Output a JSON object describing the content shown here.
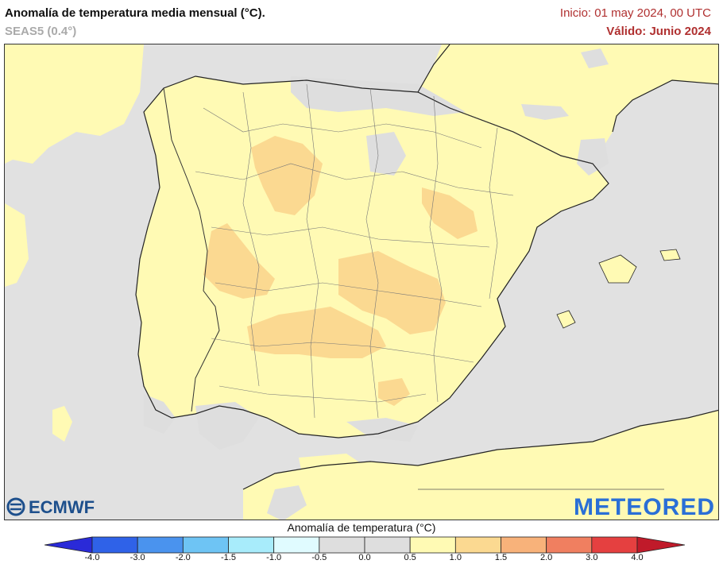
{
  "header": {
    "title": "Anomalía de temperatura media mensual (°C).",
    "subtitle": "SEAS5 (0.4°)",
    "init": "Inicio: 01 may 2024, 00 UTC",
    "valid": "Válido: Junio 2024"
  },
  "logos": {
    "left": "ECMWF",
    "right": "METEORED"
  },
  "colorbar": {
    "title": "Anomalía de temperatura (°C)",
    "ticks": [
      "-4.0",
      "-3.0",
      "-2.0",
      "-1.5",
      "-1.0",
      "-0.5",
      "0.0",
      "0.5",
      "1.0",
      "1.5",
      "2.0",
      "3.0",
      "4.0"
    ],
    "colors": [
      "#2a2ad8",
      "#2f62e8",
      "#4a93ee",
      "#6ec4f4",
      "#a8ecfb",
      "#e0fbff",
      "#dedede",
      "#dedede",
      "#fffab4",
      "#fbd991",
      "#f8b27a",
      "#f07f60",
      "#e54040",
      "#c01a2a"
    ],
    "colors_note": ""
  },
  "map": {
    "sea_color": "#e1e1e1",
    "land_base_color": "#fffab4",
    "warm_color": "#fbd991",
    "cool_color": "#dedede"
  }
}
